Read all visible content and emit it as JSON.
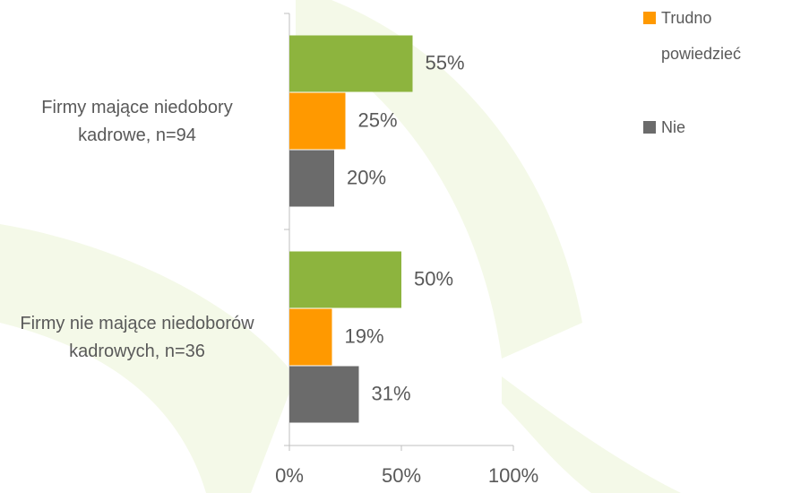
{
  "chart_data": {
    "type": "hbar",
    "categories": [
      "Firmy mające niedobory kadrowe, n=94",
      "Firmy nie mające niedoborów kadrowych, n=36"
    ],
    "series": [
      {
        "color": "#8db43e",
        "values": [
          55,
          50
        ],
        "value_labels": [
          "55%",
          "50%"
        ]
      },
      {
        "name": "Trudno powiedzieć",
        "color": "#ff9900",
        "values": [
          25,
          19
        ],
        "value_labels": [
          "25%",
          "19%"
        ]
      },
      {
        "name": "Nie",
        "color": "#6b6b6b",
        "values": [
          20,
          31
        ],
        "value_labels": [
          "20%",
          "31%"
        ]
      }
    ],
    "xlim": [
      0,
      100
    ],
    "xticks": [
      {
        "value": 0,
        "label": "0%"
      },
      {
        "value": 50,
        "label": "50%"
      },
      {
        "value": 100,
        "label": "100%"
      }
    ],
    "legend": "right"
  }
}
